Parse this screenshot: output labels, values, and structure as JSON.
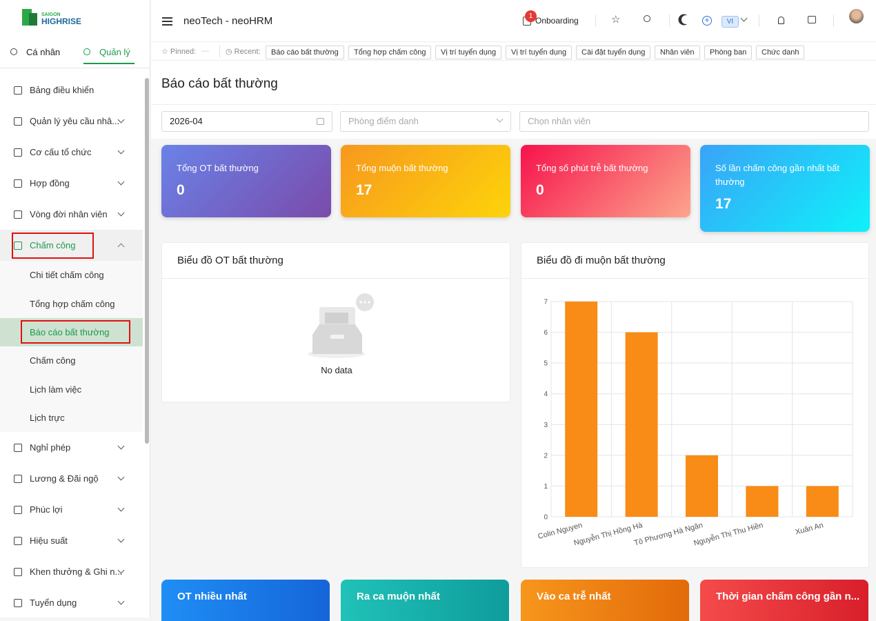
{
  "logo": {
    "line1": "SAIGON",
    "line2": "HIGHRISE"
  },
  "tabs": [
    "Cá nhân",
    "Quản lý"
  ],
  "sidebar": [
    {
      "label": "Bảng điều khiển"
    },
    {
      "label": "Quản lý yêu cầu nhâ..."
    },
    {
      "label": "Cơ cấu tổ chức"
    },
    {
      "label": "Hợp đồng"
    },
    {
      "label": "Vòng đời nhân viên"
    },
    {
      "label": "Chấm công",
      "children": [
        "Chi tiết chấm công",
        "Tổng hợp chấm công",
        "Báo cáo bất thường",
        "Chấm công",
        "Lịch làm việc",
        "Lịch trực"
      ]
    },
    {
      "label": "Nghỉ phép"
    },
    {
      "label": "Lương & Đãi ngộ"
    },
    {
      "label": "Phúc lợi"
    },
    {
      "label": "Hiệu suất"
    },
    {
      "label": "Khen thưởng & Ghi n..."
    },
    {
      "label": "Tuyển dụng"
    }
  ],
  "header": {
    "title": "neoTech - neoHRM",
    "badge": 1,
    "onboarding": "Onboarding",
    "language": "VI"
  },
  "pinned": {
    "label": "Pinned:",
    "empty": "—",
    "recent_label": "Recent:",
    "recent": [
      "Báo cáo bất thường",
      "Tổng hợp chấm công",
      "Vị trí tuyển dụng",
      "Vị trí tuyển dụng",
      "Cài đặt tuyển dụng",
      "Nhân viên",
      "Phòng ban",
      "Chức danh"
    ]
  },
  "page": {
    "title": "Báo cáo bất thường",
    "filters": {
      "month": "2026-04",
      "room_placeholder": "Phòng điểm danh",
      "employee_placeholder": "Chọn nhân viên"
    }
  },
  "stats": [
    {
      "label": "Tổng OT bất thường",
      "value": 0
    },
    {
      "label": "Tổng muộn bất thường",
      "value": 17
    },
    {
      "label": "Tổng số phút trễ bất thường",
      "value": 0
    },
    {
      "label": "Số lần chấm công gần nhất bất thường",
      "value": 17
    }
  ],
  "ot_chart": {
    "title": "Biểu đồ OT bất thường",
    "empty": "No data"
  },
  "chart_data": {
    "type": "bar",
    "title": "Biểu đồ đi muộn bất thường",
    "categories": [
      "Colin Nguyen",
      "Nguyễn Thị Hồng Hà",
      "Tô Phương Hà Ngân",
      "Nguyễn Thị Thu Hiền",
      "Xuân An"
    ],
    "values": [
      7,
      6,
      2,
      1,
      1
    ],
    "color": "#f88c17",
    "ylim": [
      0,
      7
    ],
    "yticks": [
      0,
      1,
      2,
      3,
      4,
      5,
      6,
      7
    ],
    "grid": true
  },
  "summary_cards": [
    "OT nhiều nhất",
    "Ra ca muộn nhất",
    "Vào ca trễ nhất",
    "Thời gian chấm công gần n..."
  ]
}
